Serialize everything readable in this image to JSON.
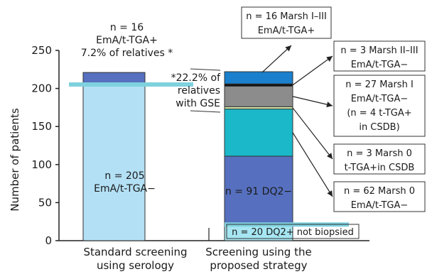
{
  "chart_data": {
    "type": "bar",
    "stacked": true,
    "ylabel": "Number of patients",
    "ylim": [
      0,
      250
    ],
    "yticks": [
      0,
      50,
      100,
      150,
      200,
      250
    ],
    "categories": [
      "Standard screening using serology",
      "Screening using the proposed strategy"
    ],
    "category_lines": [
      [
        "Standard screening",
        "using serology"
      ],
      [
        "Screening using the",
        "proposed strategy"
      ]
    ],
    "bars": [
      {
        "name": "standard",
        "segments": [
          {
            "value": 205,
            "color": "#b3e0f5",
            "label_lines": [
              "n = 205",
              "EmA/t-TGA−"
            ]
          },
          {
            "value": 16,
            "color": "#5670bf",
            "label_lines": []
          }
        ],
        "top_label_lines": [
          "n = 16",
          "EmA/t-TGA+",
          "7.2% of relatives *"
        ]
      },
      {
        "name": "proposed",
        "segments": [
          {
            "value": 20,
            "color": "#a6e6f2",
            "label_lines": [
              "n = 20 DQ2+ not biopsied"
            ]
          },
          {
            "value": 91,
            "color": "#5670bf",
            "label_lines": [
              "n = 91 DQ2−"
            ]
          },
          {
            "value": 62,
            "color": "#1ab8c9",
            "callout_lines": [
              "n = 62 Marsh 0",
              "EmA/t-TGA−"
            ]
          },
          {
            "value": 3,
            "color": "#d2e6a6",
            "callout_lines": [
              "n = 3 Marsh 0",
              "t-TGA+in CSDB"
            ]
          },
          {
            "value": 27,
            "color": "#8c8c8c",
            "callout_lines": [
              "n = 27 Marsh I",
              "EmA/t-TGA−",
              "(n = 4 t-TGA+",
              "in CSDB)"
            ]
          },
          {
            "value": 3,
            "color": "#111111",
            "callout_lines": [
              "n = 3 Marsh II–III",
              "EmA/t-TGA−"
            ]
          },
          {
            "value": 16,
            "color": "#1a7fcc",
            "callout_lines": [
              "n = 16 Marsh I–III",
              "EmA/t-TGA+"
            ]
          }
        ],
        "side_annotation_lines": [
          "*22.2% of",
          "relatives",
          "with GSE"
        ]
      }
    ],
    "reference_band_color": "#7fd1de"
  }
}
